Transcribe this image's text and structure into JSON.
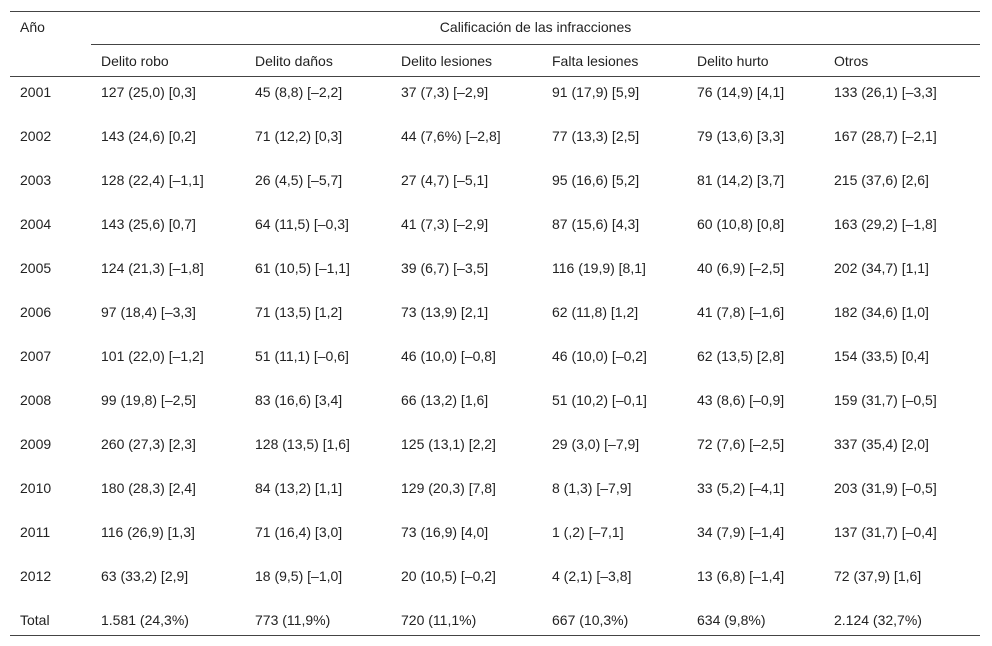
{
  "header": {
    "year": "Año",
    "group": "Calificación de las infracciones",
    "columns": [
      "Delito robo",
      "Delito daños",
      "Delito lesiones",
      "Falta lesiones",
      "Delito hurto",
      "Otros"
    ]
  },
  "table": {
    "rows": [
      [
        "2001",
        "127 (25,0) [0,3]",
        "45 (8,8) [–2,2]",
        "37 (7,3) [–2,9]",
        "91 (17,9) [5,9]",
        "76 (14,9) [4,1]",
        "133 (26,1) [–3,3]"
      ],
      [
        "2002",
        "143 (24,6) [0,2]",
        "71 (12,2) [0,3]",
        "44 (7,6%) [–2,8]",
        "77 (13,3) [2,5]",
        "79 (13,6) [3,3]",
        "167 (28,7) [–2,1]"
      ],
      [
        "2003",
        "128 (22,4) [–1,1]",
        "26 (4,5) [–5,7]",
        "27 (4,7) [–5,1]",
        "95 (16,6) [5,2]",
        "81 (14,2) [3,7]",
        "215 (37,6) [2,6]"
      ],
      [
        "2004",
        "143 (25,6) [0,7]",
        "64 (11,5) [–0,3]",
        "41 (7,3) [–2,9]",
        "87 (15,6) [4,3]",
        "60 (10,8) [0,8]",
        "163 (29,2) [–1,8]"
      ],
      [
        "2005",
        "124 (21,3) [–1,8]",
        "61 (10,5) [–1,1]",
        "39 (6,7) [–3,5]",
        "116 (19,9) [8,1]",
        "40 (6,9) [–2,5]",
        "202 (34,7) [1,1]"
      ],
      [
        "2006",
        "97 (18,4) [–3,3]",
        "71 (13,5) [1,2]",
        "73 (13,9) [2,1]",
        "62 (11,8) [1,2]",
        "41 (7,8) [–1,6]",
        "182 (34,6) [1,0]"
      ],
      [
        "2007",
        "101 (22,0) [–1,2]",
        "51 (11,1) [–0,6]",
        "46 (10,0) [–0,8]",
        "46 (10,0) [–0,2]",
        "62 (13,5) [2,8]",
        "154 (33,5) [0,4]"
      ],
      [
        "2008",
        "99 (19,8) [–2,5]",
        "83 (16,6) [3,4]",
        "66 (13,2) [1,6]",
        "51 (10,2) [–0,1]",
        "43 (8,6) [–0,9]",
        "159 (31,7) [–0,5]"
      ],
      [
        "2009",
        "260 (27,3) [2,3]",
        "128 (13,5) [1,6]",
        "125 (13,1) [2,2]",
        "29 (3,0) [–7,9]",
        "72 (7,6) [–2,5]",
        "337 (35,4) [2,0]"
      ],
      [
        "2010",
        "180 (28,3) [2,4]",
        "84 (13,2) [1,1]",
        "129 (20,3) [7,8]",
        "8 (1,3) [–7,9]",
        "33 (5,2) [–4,1]",
        "203 (31,9) [–0,5]"
      ],
      [
        "2011",
        "116 (26,9) [1,3]",
        "71 (16,4) [3,0]",
        "73 (16,9) [4,0]",
        "1 (,2) [–7,1]",
        "34 (7,9) [–1,4]",
        "137 (31,7) [–0,4]"
      ],
      [
        "2012",
        "63 (33,2) [2,9]",
        "18 (9,5) [–1,0]",
        "20 (10,5) [–0,2]",
        "4 (2,1) [–3,8]",
        "13 (6,8) [–1,4]",
        "72 (37,9) [1,6]"
      ],
      [
        "Total",
        "1.581 (24,3%)",
        "773 (11,9%)",
        "720 (11,1%)",
        "667 (10,3%)",
        "634 (9,8%)",
        "2.124 (32,7%)"
      ]
    ]
  }
}
